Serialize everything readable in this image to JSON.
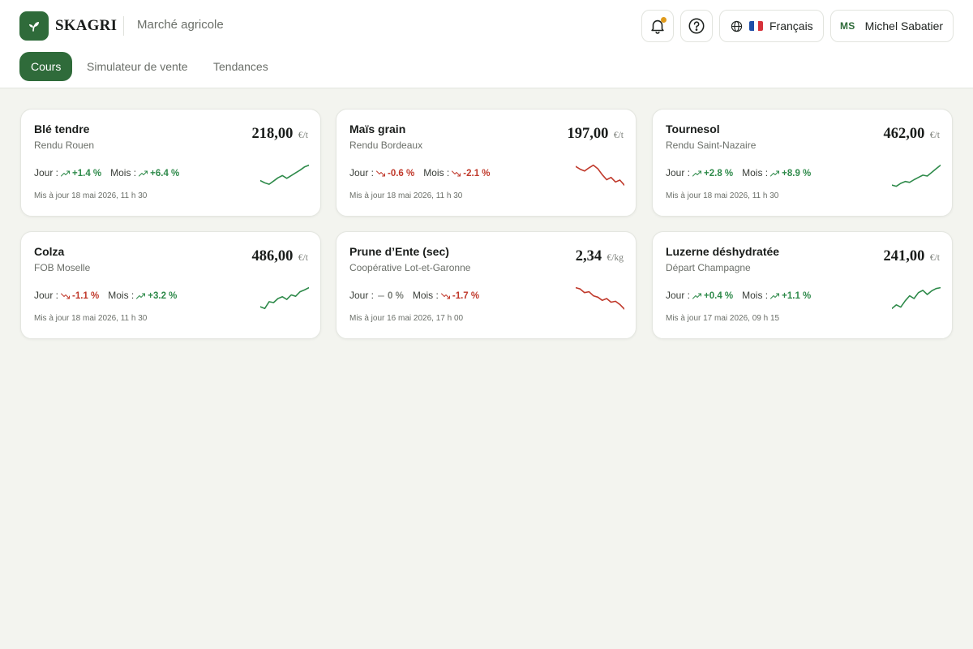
{
  "app": {
    "brand": "SKAGRI",
    "subtitle": "Marché agricole"
  },
  "header": {
    "language": "Français",
    "user_initials": "MS",
    "user_name": "Michel Sabatier",
    "has_notification": true
  },
  "tabs": [
    {
      "label": "Cours",
      "active": true
    },
    {
      "label": "Simulateur de vente",
      "active": false
    },
    {
      "label": "Tendances",
      "active": false
    }
  ],
  "labels": {
    "day": "Jour :",
    "month": "Mois :"
  },
  "colors": {
    "brand": "#2f6b3a",
    "up": "#2e8a4a",
    "down": "#c0392b",
    "notification": "#e09a1b",
    "background": "#f3f4ef"
  },
  "cards": [
    {
      "name": "Blé tendre",
      "location": "Rendu Rouen",
      "price": "218,00",
      "unit": "€/t",
      "day_change": "+1.4 %",
      "day_dir": "up",
      "month_change": "+6.4 %",
      "month_dir": "up",
      "updated": "Mis à jour 18 mai 2026, 11 h 30",
      "trend": [
        0.3,
        0.2,
        0.14,
        0.28,
        0.42,
        0.52,
        0.4,
        0.52,
        0.64,
        0.76,
        0.9,
        0.98
      ]
    },
    {
      "name": "Maïs grain",
      "location": "Rendu Bordeaux",
      "price": "197,00",
      "unit": "€/t",
      "day_change": "-0.6 %",
      "day_dir": "down",
      "month_change": "-2.1 %",
      "month_dir": "down",
      "updated": "Mis à jour 18 mai 2026, 11 h 30",
      "trend": [
        0.92,
        0.8,
        0.72,
        0.86,
        0.98,
        0.82,
        0.56,
        0.34,
        0.44,
        0.24,
        0.32,
        0.1
      ]
    },
    {
      "name": "Tournesol",
      "location": "Rendu Saint-Nazaire",
      "price": "462,00",
      "unit": "€/t",
      "day_change": "+2.8 %",
      "day_dir": "up",
      "month_change": "+8.9 %",
      "month_dir": "up",
      "updated": "Mis à jour 18 mai 2026, 11 h 30",
      "trend": [
        0.1,
        0.05,
        0.18,
        0.26,
        0.22,
        0.34,
        0.44,
        0.54,
        0.5,
        0.66,
        0.82,
        0.98
      ]
    },
    {
      "name": "Colza",
      "location": "FOB Moselle",
      "price": "486,00",
      "unit": "€/t",
      "day_change": "-1.1 %",
      "day_dir": "down",
      "month_change": "+3.2 %",
      "month_dir": "up",
      "updated": "Mis à jour 18 mai 2026, 11 h 30",
      "trend": [
        0.14,
        0.06,
        0.36,
        0.32,
        0.5,
        0.58,
        0.46,
        0.66,
        0.6,
        0.8,
        0.88,
        0.98
      ]
    },
    {
      "name": "Prune d’Ente (sec)",
      "location": "Coopérative Lot-et-Garonne",
      "price": "2,34",
      "unit": "€/kg",
      "day_change": "0 %",
      "day_dir": "flat",
      "month_change": "-1.7 %",
      "month_dir": "down",
      "updated": "Mis à jour 16 mai 2026, 17 h 00",
      "trend": [
        0.98,
        0.92,
        0.76,
        0.8,
        0.62,
        0.56,
        0.42,
        0.5,
        0.34,
        0.38,
        0.24,
        0.04
      ]
    },
    {
      "name": "Luzerne déshydratée",
      "location": "Départ Champagne",
      "price": "241,00",
      "unit": "€/t",
      "day_change": "+0.4 %",
      "day_dir": "up",
      "month_change": "+1.1 %",
      "month_dir": "up",
      "updated": "Mis à jour 17 mai 2026, 09 h 15",
      "trend": [
        0.06,
        0.22,
        0.12,
        0.4,
        0.62,
        0.5,
        0.76,
        0.86,
        0.68,
        0.84,
        0.94,
        0.98
      ]
    }
  ]
}
